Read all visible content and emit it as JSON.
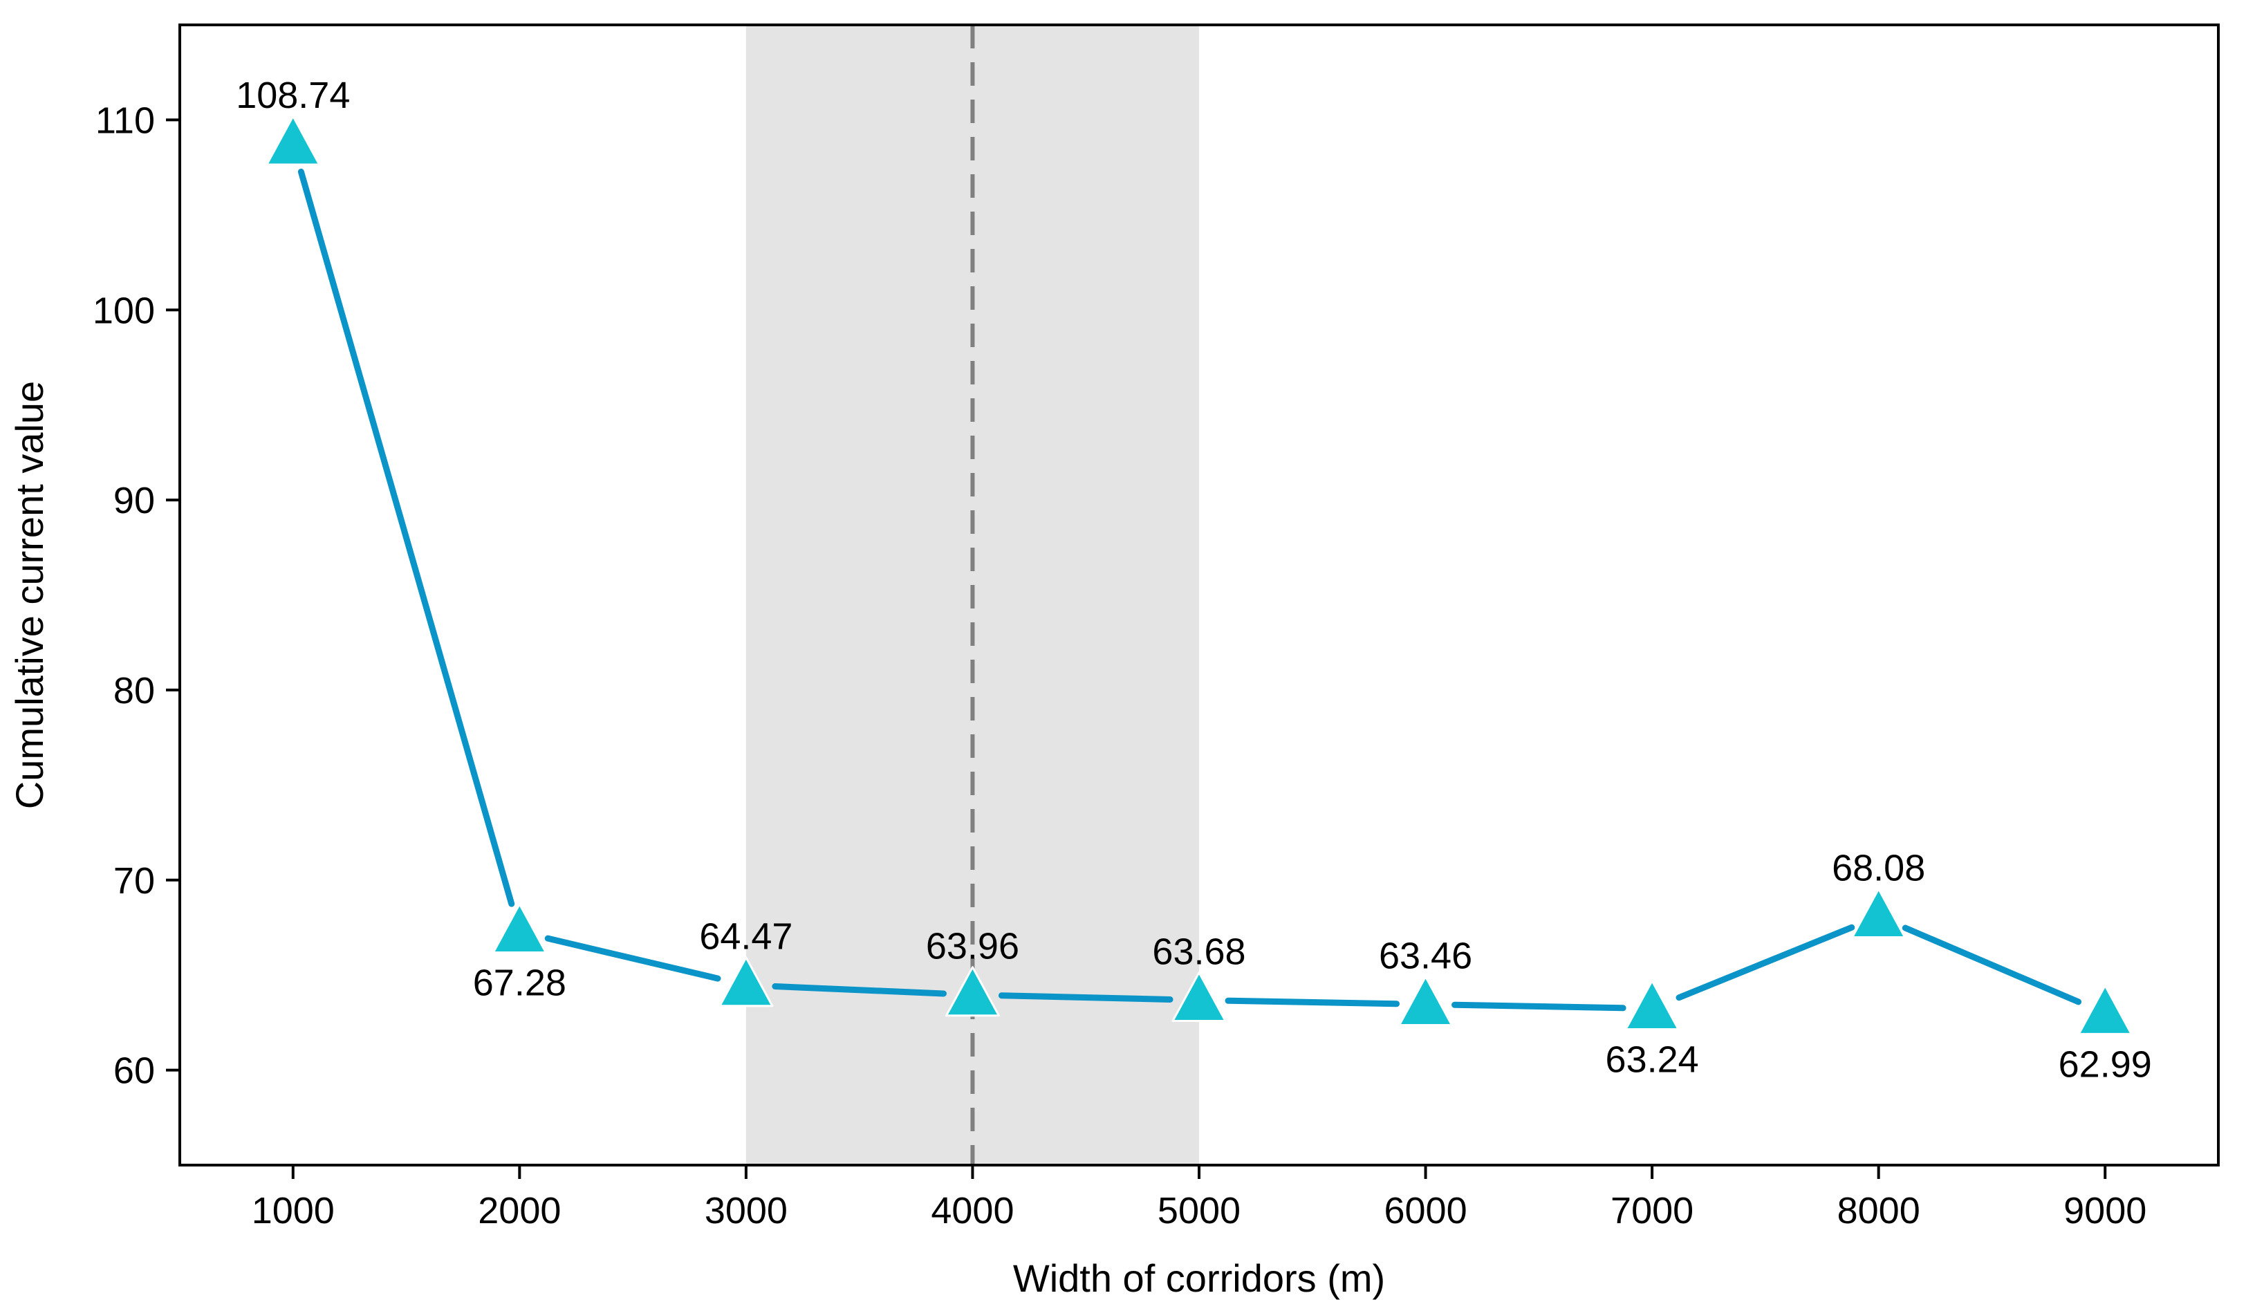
{
  "chart_data": {
    "type": "line",
    "title": "",
    "xlabel": "Width of corridors (m)",
    "ylabel": "Cumulative current value",
    "x": [
      1000,
      2000,
      3000,
      4000,
      5000,
      6000,
      7000,
      8000,
      9000
    ],
    "series": [
      {
        "values": [
          108.74,
          67.28,
          64.47,
          63.96,
          63.68,
          63.46,
          63.24,
          68.08,
          62.99
        ],
        "labels": [
          "108.74",
          "67.28",
          "64.47",
          "63.96",
          "63.68",
          "63.46",
          "63.24",
          "68.08",
          "62.99"
        ],
        "label_positions": [
          "above",
          "below",
          "above",
          "above",
          "above",
          "above",
          "below",
          "above",
          "below"
        ],
        "marker": "triangle",
        "line_color": "#0A94C8",
        "marker_color": "#14C3D2"
      }
    ],
    "xticks": [
      "1000",
      "2000",
      "3000",
      "4000",
      "5000",
      "6000",
      "7000",
      "8000",
      "9000"
    ],
    "yticks": [
      "60",
      "70",
      "80",
      "90",
      "100",
      "110"
    ],
    "xlim": [
      500,
      9500
    ],
    "ylim": [
      55,
      115
    ],
    "shaded_region": {
      "x_range": [
        3000,
        5000
      ],
      "color": "#E4E4E4"
    },
    "reference_line": {
      "x": 4000,
      "style": "dashed",
      "color": "#808080"
    },
    "grid": false,
    "legend": "none"
  }
}
